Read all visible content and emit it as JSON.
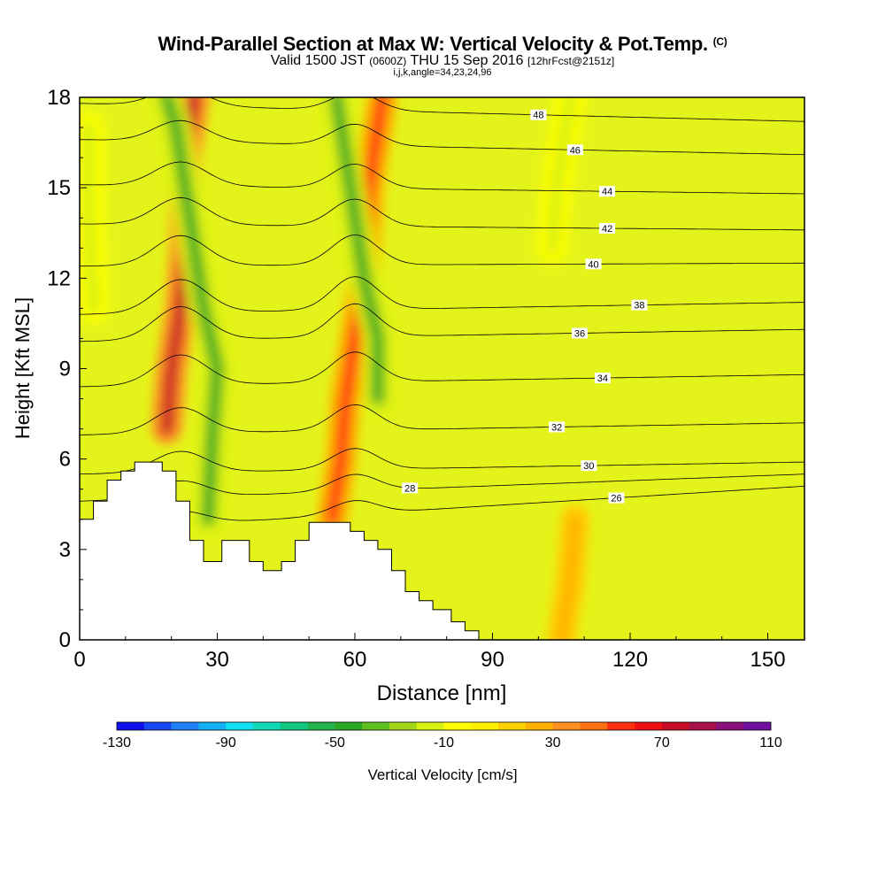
{
  "chart_data": {
    "type": "heatmap",
    "title": "Wind-Parallel Section at Max W: Vertical Velocity & Pot.Temp.",
    "title_unit": "(C)",
    "subtitle_valid": "Valid 1500 JST",
    "subtitle_utc": "(0600Z)",
    "subtitle_date": "THU 15 Sep 2016",
    "subtitle_fcst": "[12hrFcst@2151z]",
    "meta": "i,j,k,angle=34,23,24,96",
    "xlabel": "Distance [nm]",
    "ylabel": "Height [Kft MSL]",
    "xlim": [
      0,
      158
    ],
    "ylim": [
      0,
      18
    ],
    "x_ticks": [
      0,
      30,
      60,
      90,
      120,
      150
    ],
    "y_ticks": [
      0,
      3,
      6,
      9,
      12,
      15,
      18
    ],
    "colorbar": {
      "label": "Vertical Velocity [cm/s]",
      "tick_labels": [
        "-130",
        "-90",
        "-50",
        "-10",
        "30",
        "70",
        "110"
      ],
      "tick_values": [
        -130,
        -90,
        -50,
        -10,
        30,
        70,
        110
      ],
      "colors": [
        "#1010ee",
        "#1848f4",
        "#2080f8",
        "#12b0f4",
        "#10e0f0",
        "#10d8b8",
        "#10c880",
        "#22b44a",
        "#2ca828",
        "#60c020",
        "#a0d818",
        "#d8f010",
        "#ffff00",
        "#fff000",
        "#ffd000",
        "#ffb000",
        "#ff9020",
        "#ff7010",
        "#ff3010",
        "#ee1010",
        "#c80c28",
        "#a81048",
        "#8c107a",
        "#7010a0"
      ]
    },
    "terrain": [
      [
        0,
        4
      ],
      [
        3,
        4
      ],
      [
        3,
        4.6
      ],
      [
        6,
        4.6
      ],
      [
        6,
        5.3
      ],
      [
        9,
        5.3
      ],
      [
        9,
        5.6
      ],
      [
        12,
        5.6
      ],
      [
        12,
        5.9
      ],
      [
        18,
        5.9
      ],
      [
        18,
        5.6
      ],
      [
        21,
        5.6
      ],
      [
        21,
        4.6
      ],
      [
        24,
        4.6
      ],
      [
        24,
        3.3
      ],
      [
        27,
        3.3
      ],
      [
        27,
        2.6
      ],
      [
        31,
        2.6
      ],
      [
        31,
        3.3
      ],
      [
        37,
        3.3
      ],
      [
        37,
        2.6
      ],
      [
        40,
        2.6
      ],
      [
        40,
        2.3
      ],
      [
        44,
        2.3
      ],
      [
        44,
        2.6
      ],
      [
        47,
        2.6
      ],
      [
        47,
        3.3
      ],
      [
        50,
        3.3
      ],
      [
        50,
        3.9
      ],
      [
        59,
        3.9
      ],
      [
        59,
        3.6
      ],
      [
        62,
        3.6
      ],
      [
        62,
        3.3
      ],
      [
        65,
        3.3
      ],
      [
        65,
        3.0
      ],
      [
        68,
        3.0
      ],
      [
        68,
        2.3
      ],
      [
        71,
        2.3
      ],
      [
        71,
        1.6
      ],
      [
        74,
        1.6
      ],
      [
        74,
        1.3
      ],
      [
        77,
        1.3
      ],
      [
        77,
        1.0
      ],
      [
        81,
        1.0
      ],
      [
        81,
        0.6
      ],
      [
        84,
        0.6
      ],
      [
        84,
        0.3
      ],
      [
        87,
        0.3
      ],
      [
        87,
        0
      ]
    ],
    "updrafts": [
      {
        "name": "updraft-1",
        "points": [
          [
            19,
            7
          ],
          [
            20,
            9
          ],
          [
            22,
            11
          ],
          [
            23,
            13
          ],
          [
            23,
            16
          ],
          [
            25,
            18
          ]
        ],
        "value": 70
      },
      {
        "name": "updraft-2",
        "points": [
          [
            55,
            4
          ],
          [
            57,
            6
          ],
          [
            58,
            8
          ],
          [
            60,
            10
          ],
          [
            62,
            12
          ],
          [
            63,
            15
          ],
          [
            66,
            18
          ]
        ],
        "value": 50
      },
      {
        "name": "updraft-3",
        "points": [
          [
            105,
            0
          ],
          [
            107,
            2
          ],
          [
            108,
            4
          ]
        ],
        "value": 20
      }
    ],
    "downdrafts": [
      {
        "name": "downdraft-1",
        "points": [
          [
            28,
            4
          ],
          [
            29,
            7
          ],
          [
            30,
            9
          ],
          [
            27,
            11
          ],
          [
            25,
            13
          ],
          [
            23,
            15
          ],
          [
            21,
            17
          ],
          [
            19,
            18
          ]
        ],
        "value": -50
      },
      {
        "name": "downdraft-2",
        "points": [
          [
            65,
            8
          ],
          [
            65,
            10
          ],
          [
            62,
            12
          ],
          [
            60,
            14
          ],
          [
            58,
            16
          ],
          [
            56,
            18
          ]
        ],
        "value": -50
      },
      {
        "name": "downdraft-3",
        "points": [
          [
            103,
            13
          ],
          [
            104,
            15
          ],
          [
            106,
            17
          ],
          [
            107,
            18
          ]
        ],
        "value": -20
      },
      {
        "name": "downdraft-4",
        "points": [
          [
            3,
            11
          ],
          [
            2,
            14
          ],
          [
            2,
            17
          ]
        ],
        "value": -20
      }
    ],
    "isentropes": [
      {
        "level": "26",
        "y_left": 3.6,
        "y_right": 5.1,
        "rise": 0.45,
        "label_x": 117
      },
      {
        "level": "28",
        "y_left": 4.6,
        "y_right": 5.5,
        "rise": 0.55,
        "label_x": 72
      },
      {
        "level": "30",
        "y_left": 5.5,
        "y_right": 5.9,
        "rise": 0.7,
        "label_x": 111
      },
      {
        "level": "32",
        "y_left": 6.8,
        "y_right": 7.2,
        "rise": 0.85,
        "label_x": 104
      },
      {
        "level": "34",
        "y_left": 8.4,
        "y_right": 8.8,
        "rise": 1.0,
        "label_x": 114
      },
      {
        "level": "36",
        "y_left": 9.9,
        "y_right": 10.3,
        "rise": 1.1,
        "label_x": 109
      },
      {
        "level": "38",
        "y_left": 10.8,
        "y_right": 11.2,
        "rise": 1.1,
        "label_x": 122
      },
      {
        "level": "40",
        "y_left": 12.4,
        "y_right": 12.5,
        "rise": 1.0,
        "label_x": 112
      },
      {
        "level": "42",
        "y_left": 13.8,
        "y_right": 13.6,
        "rise": 0.9,
        "label_x": 115
      },
      {
        "level": "44",
        "y_left": 15.1,
        "y_right": 14.8,
        "rise": 0.8,
        "label_x": 115
      },
      {
        "level": "46",
        "y_left": 16.6,
        "y_right": 16.1,
        "rise": 0.7,
        "label_x": 108
      },
      {
        "level": "48",
        "y_left": 17.8,
        "y_right": 17.2,
        "rise": 0.6,
        "label_x": 100
      }
    ]
  }
}
